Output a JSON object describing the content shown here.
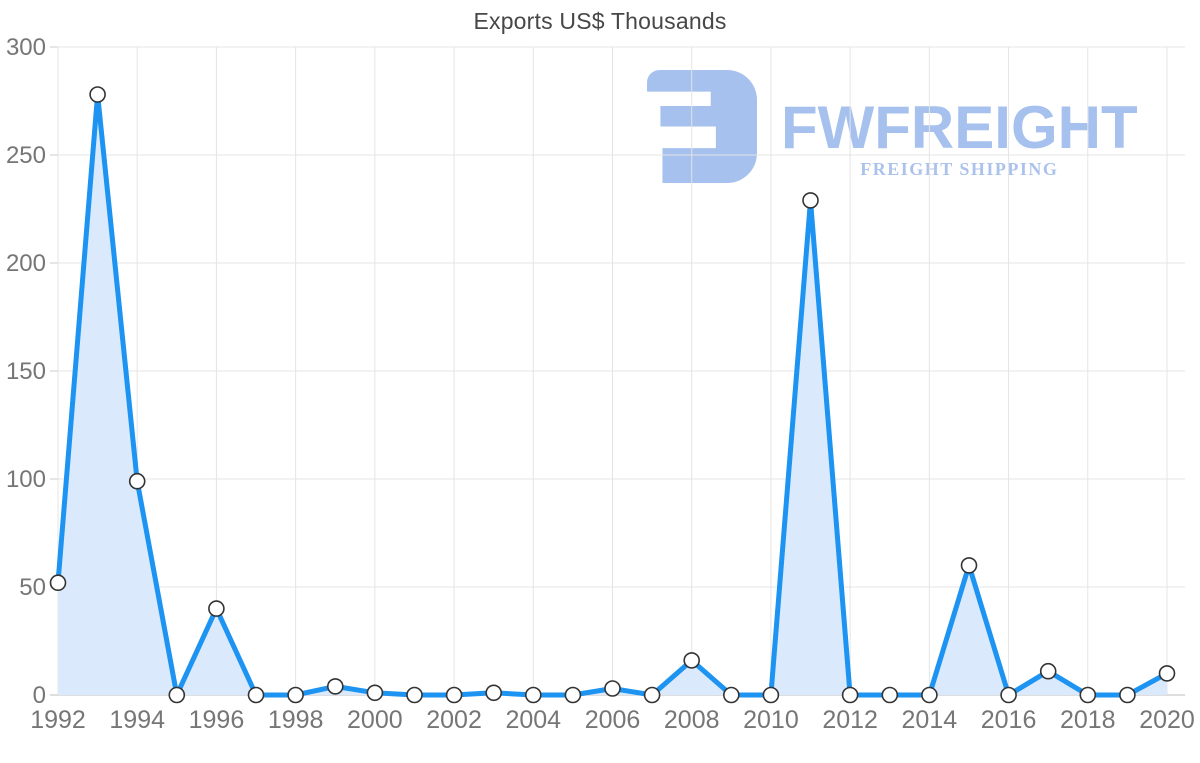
{
  "watermark": {
    "brand": "FWFREIGHT",
    "subtitle": "FREIGHT SHIPPING",
    "logo_color": "#a6c1ee",
    "subtitle_color": "#abc2ec"
  },
  "chart_data": {
    "type": "area",
    "title": "Exports US$ Thousands",
    "xlabel": "",
    "ylabel": "",
    "x": [
      1992,
      1993,
      1994,
      1995,
      1996,
      1997,
      1998,
      1999,
      2000,
      2001,
      2002,
      2003,
      2004,
      2005,
      2006,
      2007,
      2008,
      2009,
      2010,
      2011,
      2012,
      2013,
      2014,
      2015,
      2016,
      2017,
      2018,
      2019,
      2020
    ],
    "values": [
      52,
      278,
      99,
      0,
      40,
      0,
      0,
      4,
      1,
      0,
      0,
      1,
      0,
      0,
      3,
      0,
      16,
      0,
      0,
      229,
      0,
      0,
      0,
      60,
      0,
      11,
      0,
      0,
      10
    ],
    "x_tick_labels": [
      "1992",
      "1994",
      "1996",
      "1998",
      "2000",
      "2002",
      "2004",
      "2006",
      "2008",
      "2010",
      "2012",
      "2014",
      "2016",
      "2018",
      "2020"
    ],
    "y_ticks": [
      0,
      50,
      100,
      150,
      200,
      250,
      300
    ],
    "ylim": [
      0,
      300
    ],
    "grid": true,
    "legend": false,
    "markers": "circle",
    "colors": {
      "line": "#1d93f2",
      "fill": "#daeafc",
      "marker_fill": "#ffffff",
      "marker_stroke": "#333333",
      "grid": "#e4e4e4",
      "axis_line": "#c9c9c9",
      "tick": "#cccccc",
      "tick_label": "#767676",
      "title": "#474747"
    }
  }
}
